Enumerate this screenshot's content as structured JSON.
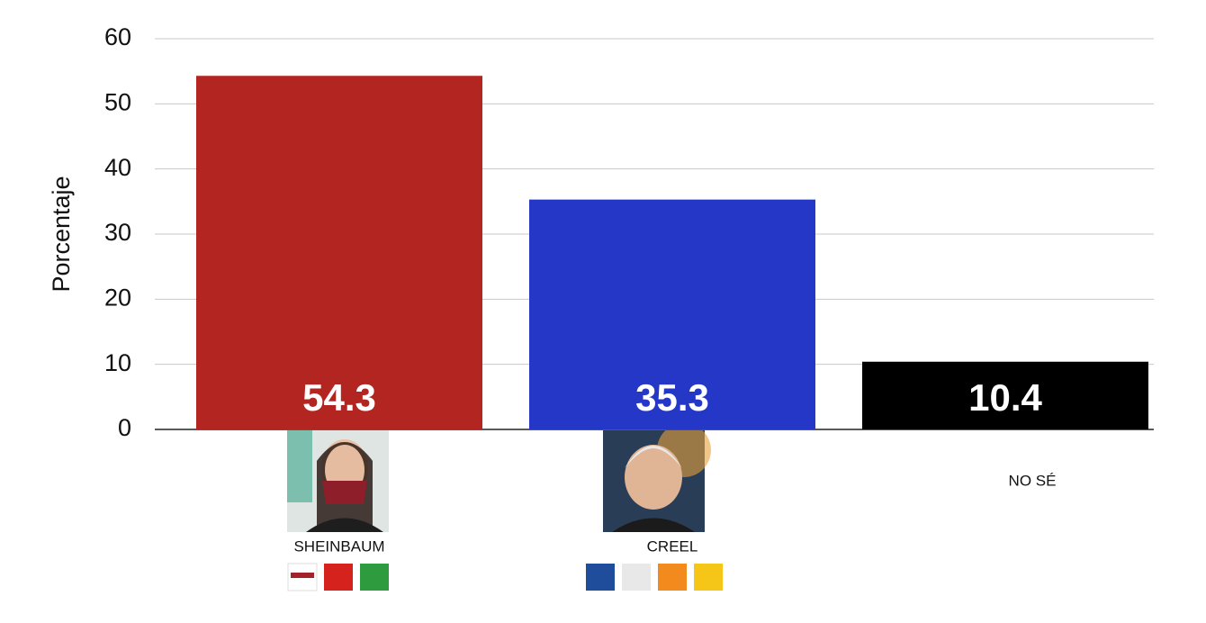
{
  "chart_data": {
    "type": "bar",
    "y_label": "Porcentaje",
    "categories": [
      "SHEINBAUM",
      "CREEL",
      "NO SÉ"
    ],
    "values": [
      54.3,
      35.3,
      10.4
    ],
    "colors": [
      "#b22520",
      "#2437c6",
      "#000000"
    ],
    "ylim": [
      0,
      60
    ],
    "yticks": [
      0,
      10,
      20,
      30,
      40,
      50,
      60
    ],
    "grid": true
  }
}
